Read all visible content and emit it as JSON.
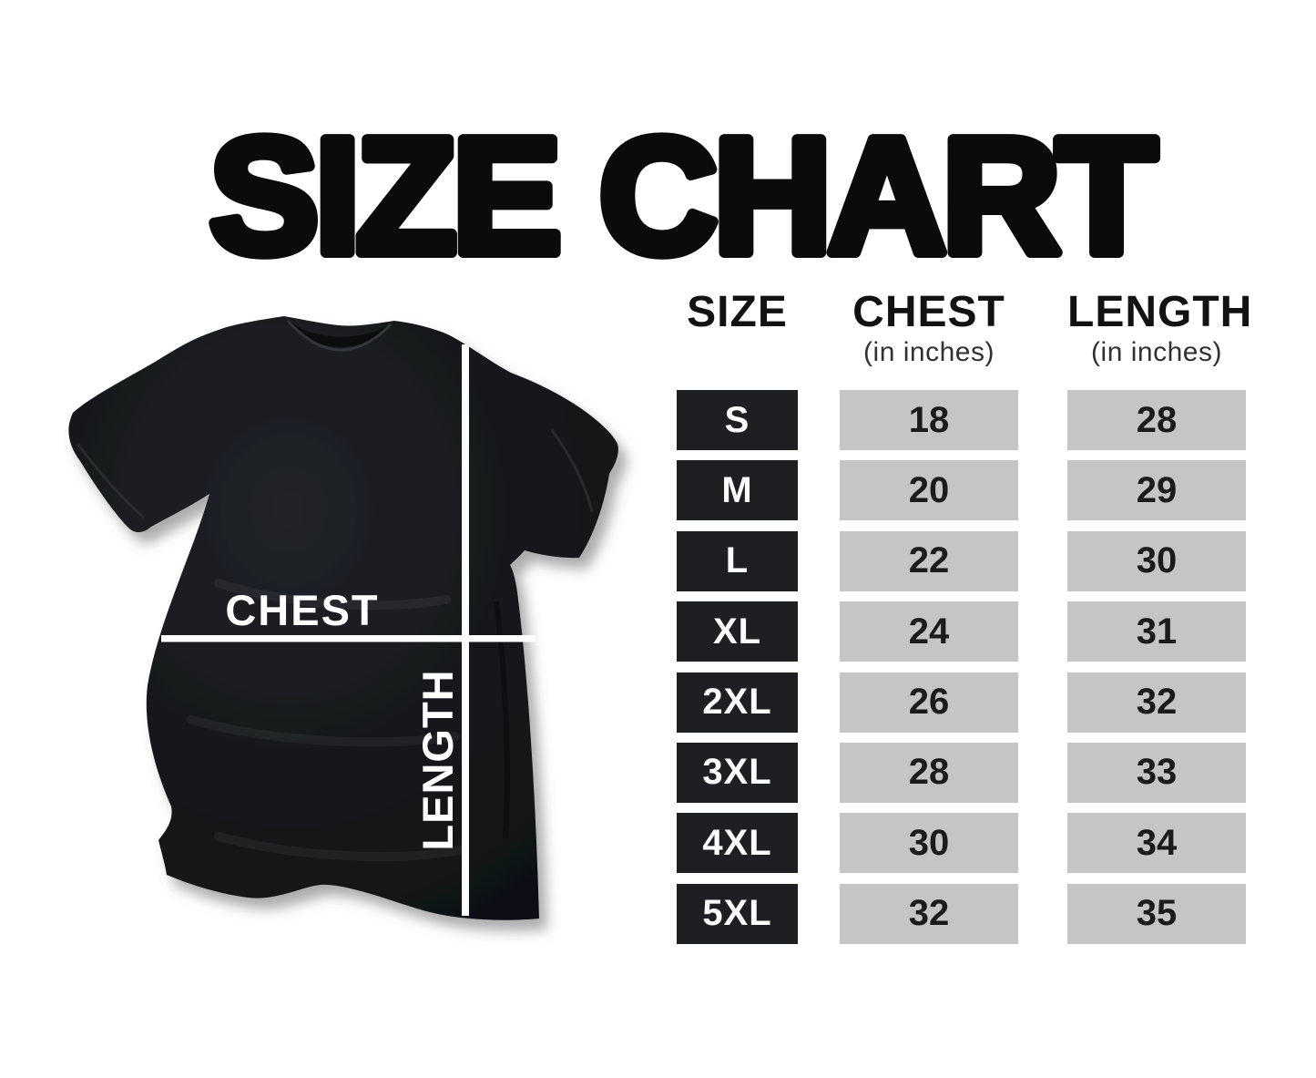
{
  "title": "SIZE CHART",
  "shirt_diagram": {
    "chest_label": "CHEST",
    "length_label": "LENGTH"
  },
  "table": {
    "headers": [
      {
        "label": "SIZE",
        "sublabel": ""
      },
      {
        "label": "CHEST",
        "sublabel": "(in inches)"
      },
      {
        "label": "LENGTH",
        "sublabel": "(in inches)"
      }
    ],
    "rows": [
      [
        "S",
        "18",
        "28"
      ],
      [
        "M",
        "20",
        "29"
      ],
      [
        "L",
        "22",
        "30"
      ],
      [
        "XL",
        "24",
        "31"
      ],
      [
        "2XL",
        "26",
        "32"
      ],
      [
        "3XL",
        "28",
        "33"
      ],
      [
        "4XL",
        "30",
        "34"
      ],
      [
        "5XL",
        "32",
        "35"
      ]
    ]
  },
  "chart_data": {
    "type": "table",
    "title": "SIZE CHART",
    "columns": [
      "SIZE",
      "CHEST (in inches)",
      "LENGTH (in inches)"
    ],
    "rows": [
      [
        "S",
        18,
        28
      ],
      [
        "M",
        20,
        29
      ],
      [
        "L",
        22,
        30
      ],
      [
        "XL",
        24,
        31
      ],
      [
        "2XL",
        26,
        32
      ],
      [
        "3XL",
        28,
        33
      ],
      [
        "4XL",
        30,
        34
      ],
      [
        "5XL",
        32,
        35
      ]
    ]
  },
  "colors": {
    "background": "#ffffff",
    "title_text": "#0b0b0b",
    "size_box": "#1d1f23",
    "value_box": "#c5c5c5",
    "value_text": "#1b1b1b",
    "shirt": "#17181c",
    "measure_line": "#ffffff"
  }
}
